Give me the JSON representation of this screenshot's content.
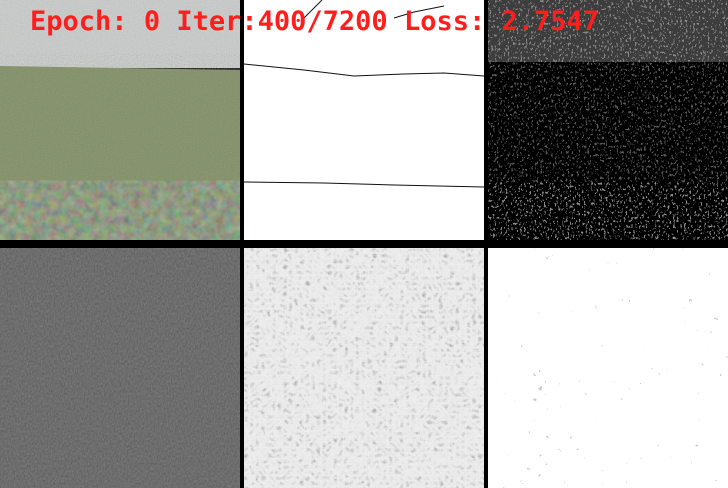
{
  "overlay": {
    "epoch_label": "Epoch:",
    "epoch_value": "0",
    "iter_label": "Iter:",
    "iter_value": "400/7200",
    "loss_label": "Loss:",
    "loss_value": "2.7547",
    "color": "#ff1e1e"
  },
  "panels": [
    {
      "name": "input-photo",
      "description_colors": {
        "sky": "#c9ccca",
        "grass": "#7f8e63",
        "hedge": "#3e4a35"
      }
    },
    {
      "name": "edge-map"
    },
    {
      "name": "feature-map-dark"
    },
    {
      "name": "feature-map-gray"
    },
    {
      "name": "feature-map-light"
    },
    {
      "name": "feature-map-white"
    }
  ]
}
